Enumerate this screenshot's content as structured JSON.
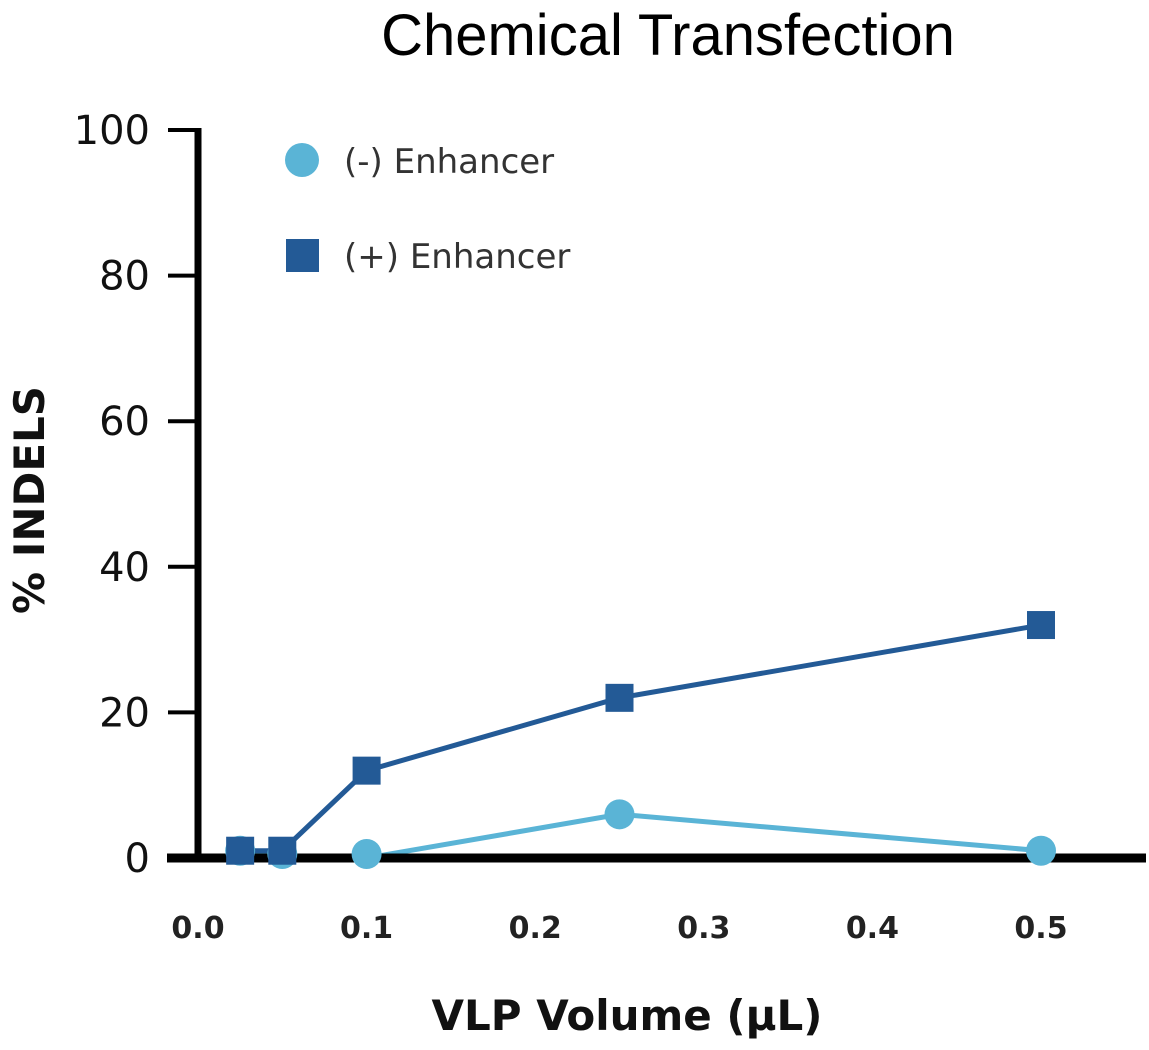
{
  "chart_data": {
    "type": "line",
    "title": "Chemical Transfection",
    "xlabel": "VLP Volume (µL)",
    "ylabel": "% INDELS",
    "xlim": [
      0,
      0.56
    ],
    "ylim": [
      0,
      100
    ],
    "x_ticks": [
      "0.0",
      "0.1",
      "0.2",
      "0.3",
      "0.4",
      "0.5"
    ],
    "y_ticks": [
      "0",
      "20",
      "40",
      "60",
      "80",
      "100"
    ],
    "grid": false,
    "legend_position": "top-left",
    "series": [
      {
        "name": "(-) Enhancer",
        "marker": "circle",
        "color": "#5ab4d6",
        "x": [
          0.025,
          0.05,
          0.1,
          0.25,
          0.5
        ],
        "y": [
          1,
          0,
          0,
          6,
          1
        ]
      },
      {
        "name": "(+) Enhancer",
        "marker": "square",
        "color": "#235a96",
        "x": [
          0.025,
          0.05,
          0.1,
          0.25,
          0.5
        ],
        "y": [
          1,
          1,
          12,
          22,
          32
        ]
      }
    ]
  }
}
